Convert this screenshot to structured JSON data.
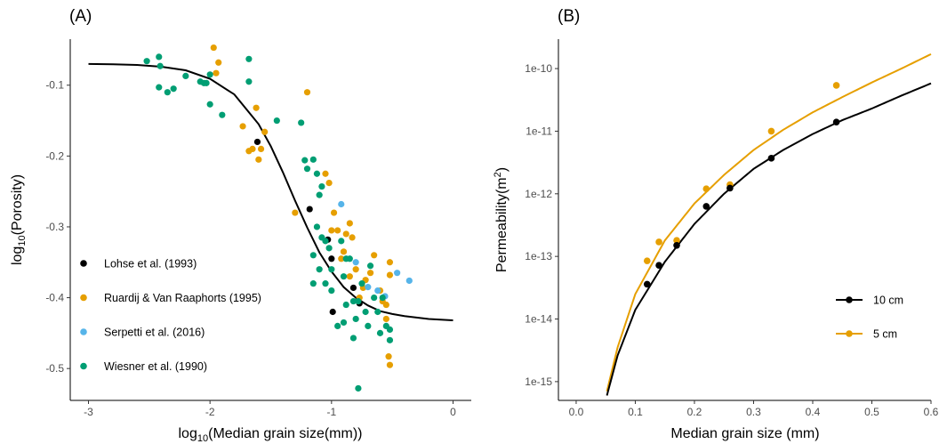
{
  "colors": {
    "lohse": "#000000",
    "ruardij": "#E69F00",
    "serpetti": "#56B4E9",
    "wiesner": "#009E73",
    "curve": "#000000",
    "axis": "#000000"
  },
  "chart_data": [
    {
      "panel": "(A)",
      "type": "scatter",
      "xlabel": "log10(Median grain size(mm))",
      "xlabel_parts": [
        "log",
        "10",
        "(Median grain size(mm))"
      ],
      "ylabel": "log10(Porosity)",
      "ylabel_parts": [
        "log",
        "10",
        "(Porosity)"
      ],
      "xlim": [
        -3.15,
        0.15
      ],
      "ylim": [
        -0.545,
        -0.035
      ],
      "xticks": [
        -3,
        -2,
        -1,
        0
      ],
      "xtick_labels": [
        "-3",
        "-2",
        "-1",
        "0"
      ],
      "yticks": [
        -0.1,
        -0.2,
        -0.3,
        -0.4,
        -0.5
      ],
      "ytick_labels": [
        "-0.1",
        "-0.2",
        "-0.3",
        "-0.4",
        "-0.5"
      ],
      "grid": false,
      "legend_position": "bottom-left",
      "series": [
        {
          "name": "Lohse et al. (1993)",
          "color": "#000000",
          "points": [
            [
              -1.61,
              -0.18
            ],
            [
              -1.18,
              -0.275
            ],
            [
              -1.03,
              -0.318
            ],
            [
              -1.0,
              -0.345
            ],
            [
              -0.99,
              -0.42
            ],
            [
              -0.82,
              -0.386
            ],
            [
              -0.77,
              -0.408
            ]
          ]
        },
        {
          "name": "Ruardij & Van Raaphorts (1995)",
          "color": "#E69F00",
          "points": [
            [
              -1.97,
              -0.047
            ],
            [
              -1.95,
              -0.083
            ],
            [
              -1.93,
              -0.068
            ],
            [
              -1.62,
              -0.132
            ],
            [
              -1.73,
              -0.158
            ],
            [
              -1.68,
              -0.193
            ],
            [
              -1.65,
              -0.19
            ],
            [
              -1.6,
              -0.205
            ],
            [
              -1.58,
              -0.19
            ],
            [
              -1.55,
              -0.166
            ],
            [
              -1.2,
              -0.11
            ],
            [
              -1.3,
              -0.28
            ],
            [
              -1.05,
              -0.225
            ],
            [
              -1.02,
              -0.238
            ],
            [
              -0.98,
              -0.28
            ],
            [
              -1.0,
              -0.305
            ],
            [
              -0.95,
              -0.305
            ],
            [
              -0.92,
              -0.345
            ],
            [
              -0.88,
              -0.31
            ],
            [
              -0.85,
              -0.295
            ],
            [
              -0.83,
              -0.315
            ],
            [
              -0.8,
              -0.36
            ],
            [
              -0.77,
              -0.4
            ],
            [
              -0.74,
              -0.386
            ],
            [
              -0.72,
              -0.375
            ],
            [
              -0.68,
              -0.365
            ],
            [
              -0.65,
              -0.34
            ],
            [
              -0.6,
              -0.39
            ],
            [
              -0.58,
              -0.405
            ],
            [
              -0.55,
              -0.41
            ],
            [
              -0.52,
              -0.35
            ],
            [
              -0.52,
              -0.368
            ],
            [
              -0.53,
              -0.483
            ],
            [
              -0.52,
              -0.495
            ],
            [
              -0.55,
              -0.43
            ],
            [
              -0.85,
              -0.37
            ],
            [
              -0.9,
              -0.335
            ]
          ]
        },
        {
          "name": "Serpetti et al. (2016)",
          "color": "#56B4E9",
          "points": [
            [
              -0.92,
              -0.268
            ],
            [
              -0.8,
              -0.35
            ],
            [
              -0.7,
              -0.385
            ],
            [
              -0.62,
              -0.39
            ],
            [
              -0.46,
              -0.365
            ],
            [
              -0.36,
              -0.376
            ],
            [
              -0.56,
              -0.398
            ]
          ]
        },
        {
          "name": "Wiesner et al. (1990)",
          "color": "#009E73",
          "points": [
            [
              -2.52,
              -0.066
            ],
            [
              -2.42,
              -0.06
            ],
            [
              -2.41,
              -0.073
            ],
            [
              -2.42,
              -0.103
            ],
            [
              -2.35,
              -0.11
            ],
            [
              -2.3,
              -0.105
            ],
            [
              -2.2,
              -0.087
            ],
            [
              -2.08,
              -0.095
            ],
            [
              -2.05,
              -0.097
            ],
            [
              -2.03,
              -0.097
            ],
            [
              -2.0,
              -0.085
            ],
            [
              -2.0,
              -0.127
            ],
            [
              -1.9,
              -0.142
            ],
            [
              -1.68,
              -0.063
            ],
            [
              -1.68,
              -0.095
            ],
            [
              -1.45,
              -0.15
            ],
            [
              -1.25,
              -0.153
            ],
            [
              -1.22,
              -0.206
            ],
            [
              -1.2,
              -0.218
            ],
            [
              -1.15,
              -0.205
            ],
            [
              -1.12,
              -0.225
            ],
            [
              -1.1,
              -0.255
            ],
            [
              -1.08,
              -0.243
            ],
            [
              -1.12,
              -0.3
            ],
            [
              -1.08,
              -0.315
            ],
            [
              -1.05,
              -0.32
            ],
            [
              -1.15,
              -0.34
            ],
            [
              -1.1,
              -0.36
            ],
            [
              -1.02,
              -0.33
            ],
            [
              -1.0,
              -0.36
            ],
            [
              -1.0,
              -0.39
            ],
            [
              -1.05,
              -0.38
            ],
            [
              -1.15,
              -0.38
            ],
            [
              -0.95,
              -0.44
            ],
            [
              -0.9,
              -0.435
            ],
            [
              -0.88,
              -0.41
            ],
            [
              -0.9,
              -0.37
            ],
            [
              -0.92,
              -0.32
            ],
            [
              -0.88,
              -0.345
            ],
            [
              -0.85,
              -0.345
            ],
            [
              -0.82,
              -0.405
            ],
            [
              -0.8,
              -0.43
            ],
            [
              -0.78,
              -0.405
            ],
            [
              -0.78,
              -0.528
            ],
            [
              -0.82,
              -0.457
            ],
            [
              -0.75,
              -0.38
            ],
            [
              -0.72,
              -0.42
            ],
            [
              -0.68,
              -0.355
            ],
            [
              -0.65,
              -0.4
            ],
            [
              -0.62,
              -0.42
            ],
            [
              -0.6,
              -0.45
            ],
            [
              -0.58,
              -0.4
            ],
            [
              -0.55,
              -0.44
            ],
            [
              -0.52,
              -0.445
            ],
            [
              -0.52,
              -0.46
            ],
            [
              -0.7,
              -0.44
            ]
          ]
        }
      ],
      "fit_curve": {
        "name": "logistic fit",
        "x": [
          -3.0,
          -2.8,
          -2.6,
          -2.4,
          -2.2,
          -2.0,
          -1.8,
          -1.6,
          -1.5,
          -1.4,
          -1.3,
          -1.2,
          -1.1,
          -1.0,
          -0.9,
          -0.8,
          -0.7,
          -0.6,
          -0.5,
          -0.4,
          -0.2,
          0.0
        ],
        "y": [
          -0.07,
          -0.0705,
          -0.0715,
          -0.074,
          -0.079,
          -0.091,
          -0.113,
          -0.155,
          -0.186,
          -0.223,
          -0.263,
          -0.301,
          -0.336,
          -0.363,
          -0.385,
          -0.4,
          -0.411,
          -0.419,
          -0.423,
          -0.426,
          -0.43,
          -0.432
        ]
      }
    },
    {
      "panel": "(B)",
      "type": "line",
      "xlabel": "Median grain size (mm)",
      "ylabel": "Permeability(m2)",
      "ylabel_parts": [
        "Permeability(m",
        "2",
        ")"
      ],
      "xlim": [
        -0.03,
        0.6
      ],
      "ylog10lim": [
        -15.3,
        -9.53
      ],
      "xticks": [
        0.0,
        0.1,
        0.2,
        0.3,
        0.4,
        0.5,
        0.6
      ],
      "xtick_labels": [
        "0.0",
        "0.1",
        "0.2",
        "0.3",
        "0.4",
        "0.5",
        "0.6"
      ],
      "yticks_log10": [
        -15,
        -14,
        -13,
        -12,
        -11,
        -10
      ],
      "ytick_labels": [
        "1e-15",
        "1e-14",
        "1e-13",
        "1e-12",
        "1e-11",
        "1e-10"
      ],
      "grid": false,
      "legend_position": "bottom-right",
      "series": [
        {
          "name": "10 cm",
          "color": "#000000",
          "x": [
            0.12,
            0.14,
            0.17,
            0.22,
            0.26,
            0.33,
            0.44
          ],
          "y": [
            3.6e-14,
            7.2e-14,
            1.5e-13,
            6.3e-13,
            1.23e-12,
            3.7e-12,
            1.4e-11
          ],
          "fit": {
            "x": [
              0.052,
              0.07,
              0.1,
              0.15,
              0.2,
              0.25,
              0.3,
              0.35,
              0.4,
              0.45,
              0.5,
              0.55,
              0.6
            ],
            "y": [
              6e-16,
              2.6e-15,
              1.4e-14,
              8.2e-14,
              3.3e-13,
              1e-12,
              2.5e-12,
              5e-12,
              9e-12,
              1.5e-11,
              2.3e-11,
              3.7e-11,
              5.8e-11
            ]
          }
        },
        {
          "name": "5 cm",
          "color": "#E69F00",
          "x": [
            0.12,
            0.14,
            0.17,
            0.22,
            0.26,
            0.33,
            0.44
          ],
          "y": [
            8.5e-14,
            1.7e-13,
            1.8e-13,
            1.2e-12,
            1.4e-12,
            1e-11,
            5.4e-11
          ],
          "fit": {
            "x": [
              0.052,
              0.07,
              0.1,
              0.15,
              0.2,
              0.25,
              0.3,
              0.35,
              0.4,
              0.45,
              0.5,
              0.55,
              0.6
            ],
            "y": [
              7e-16,
              3.5e-15,
              2.5e-14,
              1.8e-13,
              7e-13,
              2e-12,
              5e-12,
              1.05e-11,
              2e-11,
              3.5e-11,
              6e-11,
              1e-10,
              1.7e-10
            ]
          }
        }
      ]
    }
  ]
}
